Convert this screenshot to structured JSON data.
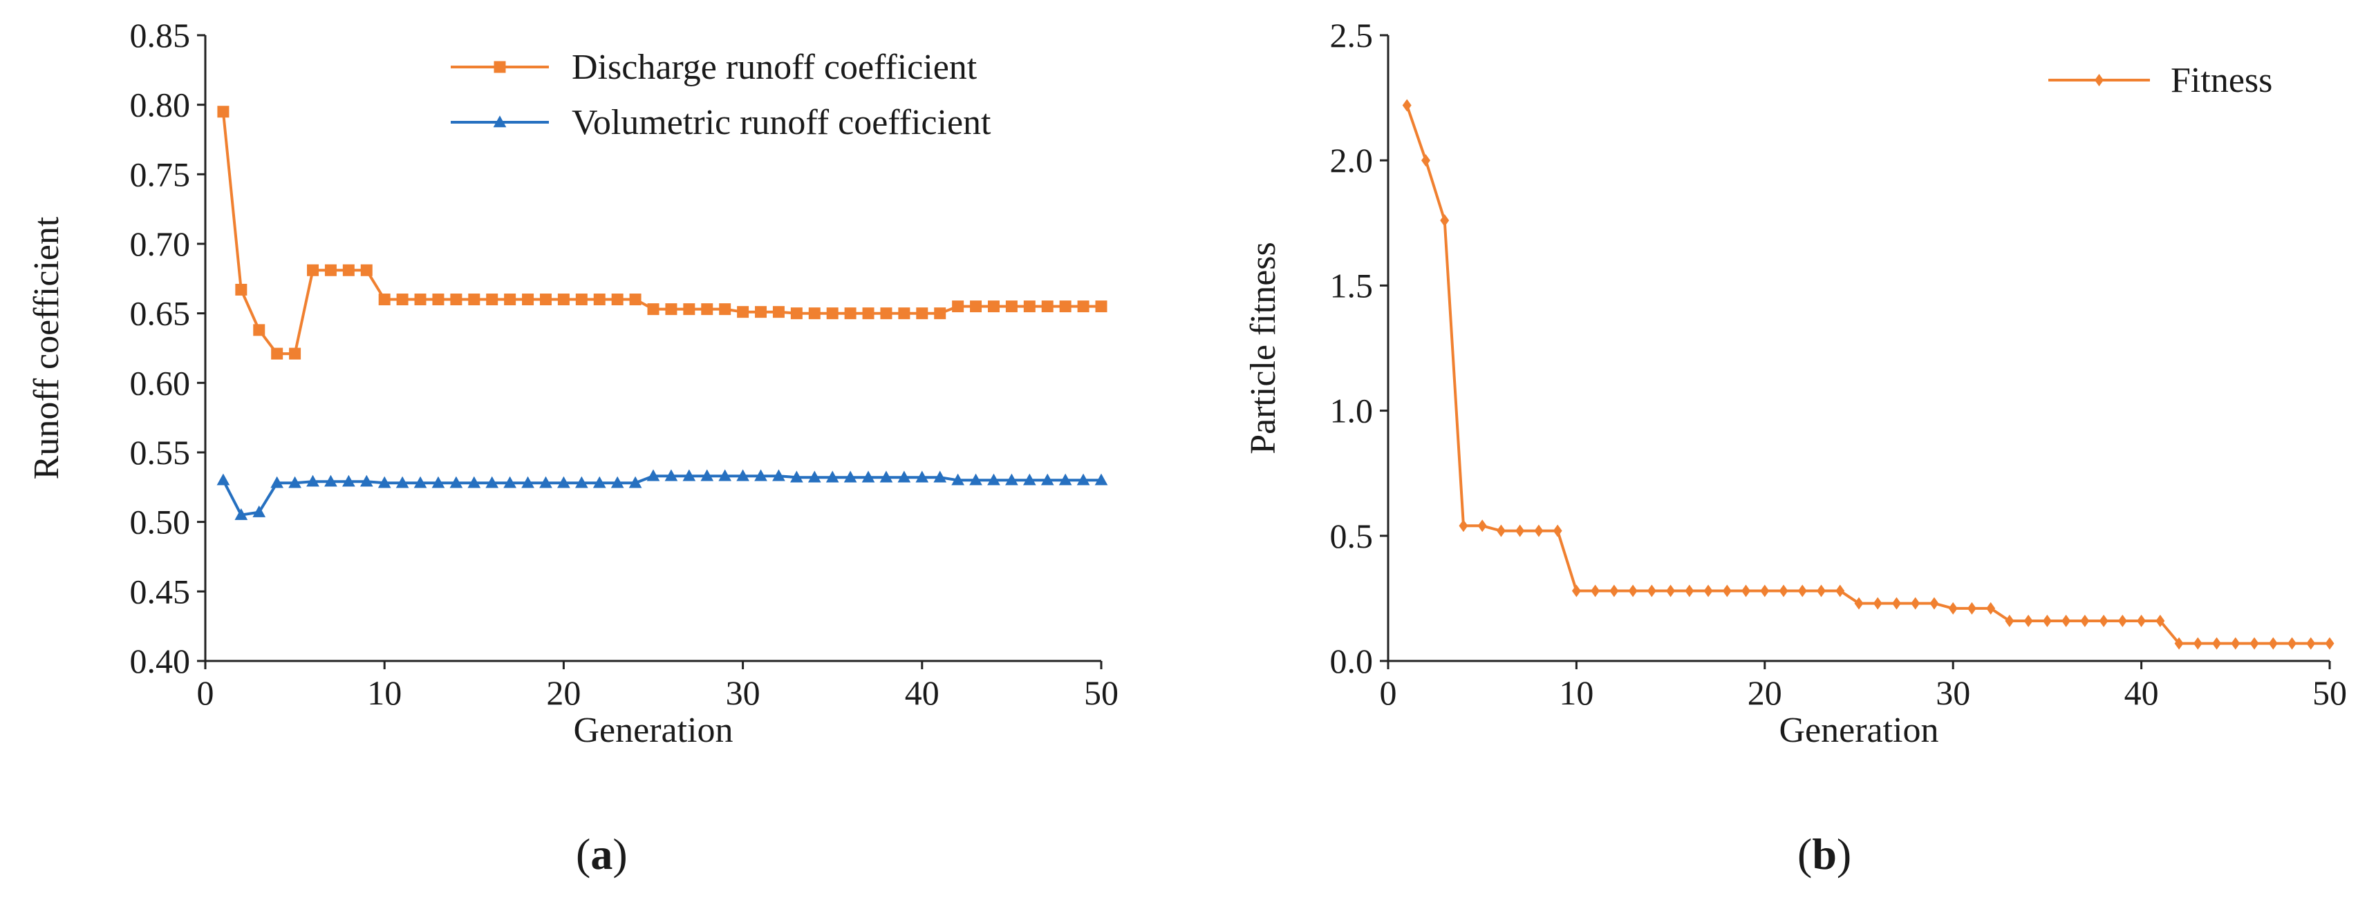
{
  "chart_data": [
    {
      "type": "line",
      "panel_label": "(a)",
      "panel_letter": "a",
      "xlabel": "Generation",
      "ylabel": "Runoff coefficient",
      "xlim": [
        0,
        50
      ],
      "ylim": [
        0.4,
        0.85
      ],
      "xticks": [
        0,
        10,
        20,
        30,
        40,
        50
      ],
      "yticks": [
        0.4,
        0.45,
        0.5,
        0.55,
        0.6,
        0.65,
        0.7,
        0.75,
        0.8,
        0.85
      ],
      "xtick_labels": [
        "0",
        "10",
        "20",
        "30",
        "40",
        "50"
      ],
      "ytick_labels": [
        "0.40",
        "0.45",
        "0.50",
        "0.55",
        "0.60",
        "0.65",
        "0.70",
        "0.75",
        "0.80",
        "0.85"
      ],
      "legend_position": "top-right",
      "x": [
        1,
        2,
        3,
        4,
        5,
        6,
        7,
        8,
        9,
        10,
        11,
        12,
        13,
        14,
        15,
        16,
        17,
        18,
        19,
        20,
        21,
        22,
        23,
        24,
        25,
        26,
        27,
        28,
        29,
        30,
        31,
        32,
        33,
        34,
        35,
        36,
        37,
        38,
        39,
        40,
        41,
        42,
        43,
        44,
        45,
        46,
        47,
        48,
        49,
        50
      ],
      "series": [
        {
          "name": "Discharge runoff coefficient",
          "color": "#f08030",
          "marker": "square",
          "values": [
            0.795,
            0.667,
            0.638,
            0.621,
            0.621,
            0.681,
            0.681,
            0.681,
            0.681,
            0.66,
            0.66,
            0.66,
            0.66,
            0.66,
            0.66,
            0.66,
            0.66,
            0.66,
            0.66,
            0.66,
            0.66,
            0.66,
            0.66,
            0.66,
            0.653,
            0.653,
            0.653,
            0.653,
            0.653,
            0.651,
            0.651,
            0.651,
            0.65,
            0.65,
            0.65,
            0.65,
            0.65,
            0.65,
            0.65,
            0.65,
            0.65,
            0.655,
            0.655,
            0.655,
            0.655,
            0.655,
            0.655,
            0.655,
            0.655,
            0.655
          ]
        },
        {
          "name": "Volumetric runoff coefficient",
          "color": "#2670c0",
          "marker": "triangle",
          "values": [
            0.53,
            0.505,
            0.507,
            0.528,
            0.528,
            0.529,
            0.529,
            0.529,
            0.529,
            0.528,
            0.528,
            0.528,
            0.528,
            0.528,
            0.528,
            0.528,
            0.528,
            0.528,
            0.528,
            0.528,
            0.528,
            0.528,
            0.528,
            0.528,
            0.533,
            0.533,
            0.533,
            0.533,
            0.533,
            0.533,
            0.533,
            0.533,
            0.532,
            0.532,
            0.532,
            0.532,
            0.532,
            0.532,
            0.532,
            0.532,
            0.532,
            0.53,
            0.53,
            0.53,
            0.53,
            0.53,
            0.53,
            0.53,
            0.53,
            0.53
          ]
        }
      ]
    },
    {
      "type": "line",
      "panel_label": "(b)",
      "panel_letter": "b",
      "xlabel": "Generation",
      "ylabel": "Particle fitness",
      "xlim": [
        0,
        50
      ],
      "ylim": [
        0.0,
        2.5
      ],
      "xticks": [
        0,
        10,
        20,
        30,
        40,
        50
      ],
      "yticks": [
        0.0,
        0.5,
        1.0,
        1.5,
        2.0,
        2.5
      ],
      "xtick_labels": [
        "0",
        "10",
        "20",
        "30",
        "40",
        "50"
      ],
      "ytick_labels": [
        "0.0",
        "0.5",
        "1.0",
        "1.5",
        "2.0",
        "2.5"
      ],
      "legend_position": "top-right",
      "x": [
        1,
        2,
        3,
        4,
        5,
        6,
        7,
        8,
        9,
        10,
        11,
        12,
        13,
        14,
        15,
        16,
        17,
        18,
        19,
        20,
        21,
        22,
        23,
        24,
        25,
        26,
        27,
        28,
        29,
        30,
        31,
        32,
        33,
        34,
        35,
        36,
        37,
        38,
        39,
        40,
        41,
        42,
        43,
        44,
        45,
        46,
        47,
        48,
        49,
        50
      ],
      "series": [
        {
          "name": "Fitness",
          "color": "#f08030",
          "marker": "diamond",
          "values": [
            2.22,
            2.0,
            1.76,
            0.54,
            0.54,
            0.52,
            0.52,
            0.52,
            0.52,
            0.28,
            0.28,
            0.28,
            0.28,
            0.28,
            0.28,
            0.28,
            0.28,
            0.28,
            0.28,
            0.28,
            0.28,
            0.28,
            0.28,
            0.28,
            0.23,
            0.23,
            0.23,
            0.23,
            0.23,
            0.21,
            0.21,
            0.21,
            0.16,
            0.16,
            0.16,
            0.16,
            0.16,
            0.16,
            0.16,
            0.16,
            0.16,
            0.07,
            0.07,
            0.07,
            0.07,
            0.07,
            0.07,
            0.07,
            0.07,
            0.07
          ]
        }
      ]
    }
  ]
}
